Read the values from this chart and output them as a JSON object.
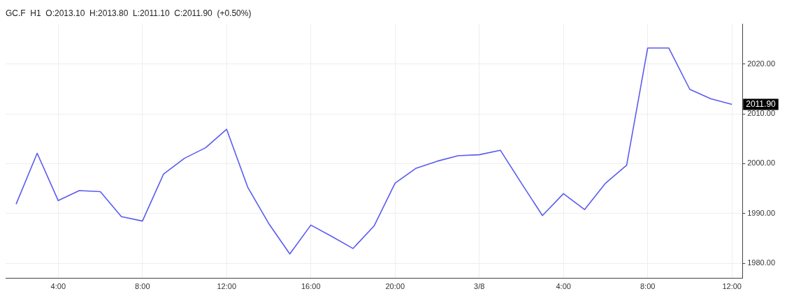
{
  "chart_data": {
    "type": "line",
    "title": "GC.F  H1  O:2013.10  H:2013.80  L:2011.10  C:2011.90  (+0.50%)",
    "categories": [
      null,
      null,
      "4:00",
      null,
      null,
      null,
      "8:00",
      null,
      null,
      null,
      "12:00",
      null,
      null,
      null,
      "16:00",
      null,
      null,
      null,
      "20:00",
      null,
      null,
      null,
      "3/8",
      null,
      null,
      null,
      "4:00",
      null,
      null,
      null,
      "8:00",
      null,
      null,
      null,
      "12:00"
    ],
    "series": [
      {
        "color": "#5b5bf0",
        "values": [
          1991.9,
          2002.1,
          1992.6,
          1994.6,
          1994.4,
          1989.4,
          1988.5,
          1997.9,
          2001.1,
          2003.2,
          2006.9,
          1995.3,
          1988.0,
          1981.9,
          1987.7,
          1985.4,
          1983.0,
          1987.5,
          1996.1,
          1999.1,
          2000.5,
          2001.6,
          2001.8,
          2002.7,
          1996.1,
          1989.6,
          1994.0,
          1990.8,
          1996.1,
          1999.7,
          2023.2,
          2023.2,
          2014.9,
          2013.0,
          2011.9
        ]
      }
    ],
    "ylim": [
      1977,
      2028
    ],
    "yticks": [
      {
        "value": 1980,
        "label": "1980.00"
      },
      {
        "value": 1990,
        "label": "1990.00"
      },
      {
        "value": 2000,
        "label": "2000.00"
      },
      {
        "value": 2010,
        "label": "2010.00"
      },
      {
        "value": 2020,
        "label": "2020.00"
      }
    ],
    "annotations": [
      "2011.90"
    ],
    "grid": true,
    "legend": false,
    "marker": "none",
    "line_style": "solid"
  }
}
